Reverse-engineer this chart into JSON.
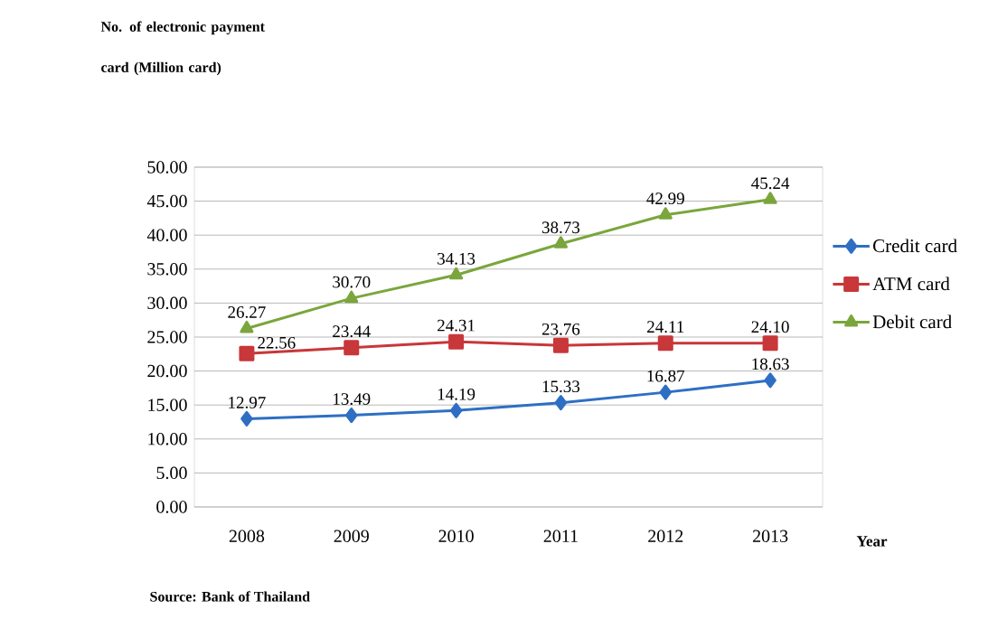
{
  "chart_data": {
    "type": "line",
    "ylabel": "No. of electronic payment card (Million card)",
    "xlabel": "Year",
    "categories": [
      "2008",
      "2009",
      "2010",
      "2011",
      "2012",
      "2013"
    ],
    "series": [
      {
        "name": "Credit card",
        "color": "#2e6fc4",
        "marker": "diamond",
        "values": [
          12.97,
          13.49,
          14.19,
          15.33,
          16.87,
          18.63
        ],
        "value_labels": [
          "12.97",
          "13.49",
          "14.19",
          "15.33",
          "16.87",
          "18.63"
        ]
      },
      {
        "name": "ATM card",
        "color": "#c8373a",
        "marker": "square",
        "values": [
          22.56,
          23.44,
          24.31,
          23.76,
          24.11,
          24.1
        ],
        "value_labels": [
          "22.56",
          "23.44",
          "24.31",
          "23.76",
          "24.11",
          "24.10"
        ]
      },
      {
        "name": "Debit card",
        "color": "#7aa63c",
        "marker": "triangle",
        "values": [
          26.27,
          30.7,
          34.13,
          38.73,
          42.99,
          45.24
        ],
        "value_labels": [
          "26.27",
          "30.70",
          "34.13",
          "38.73",
          "42.99",
          "45.24"
        ]
      }
    ],
    "ylim": [
      0,
      50
    ],
    "yticks": [
      {
        "value": 0,
        "label": "0.00"
      },
      {
        "value": 5,
        "label": "5.00"
      },
      {
        "value": 10,
        "label": "10.00"
      },
      {
        "value": 15,
        "label": "15.00"
      },
      {
        "value": 20,
        "label": "20.00"
      },
      {
        "value": 25,
        "label": "25.00"
      },
      {
        "value": 30,
        "label": "30.00"
      },
      {
        "value": 35,
        "label": "35.00"
      },
      {
        "value": 40,
        "label": "40.00"
      },
      {
        "value": 45,
        "label": "45.00"
      },
      {
        "value": 50,
        "label": "50.00"
      }
    ],
    "grid": "y",
    "legend": "right",
    "line_style": "solid",
    "annotations": [
      "Source: Bank of Thailand"
    ]
  }
}
